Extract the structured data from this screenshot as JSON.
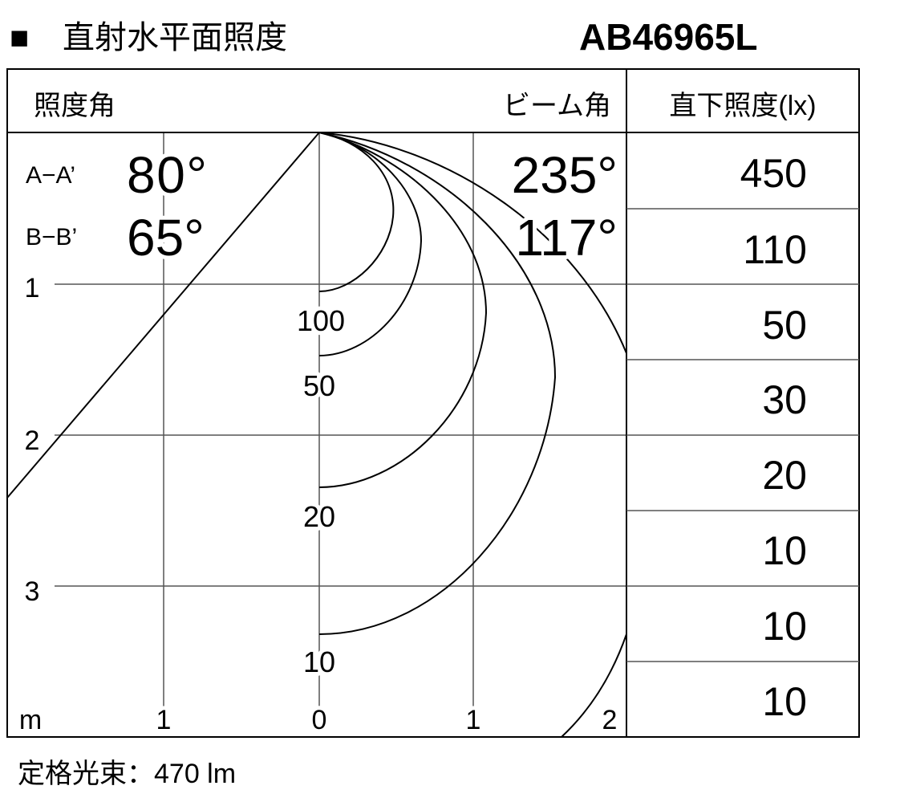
{
  "header": {
    "bullet": "■",
    "title": "直射水平面照度",
    "model": "AB46965L"
  },
  "table_header": {
    "illum_angle": "照度角",
    "beam_angle": "ビーム角",
    "direct_illuminance": "直下照度(lx)"
  },
  "angles": [
    {
      "label": "A−A’",
      "illum_angle": "80°",
      "beam_angle": "235°"
    },
    {
      "label": "B−B’",
      "illum_angle": "65°",
      "beam_angle": "117°"
    }
  ],
  "depth_labels": [
    "1",
    "2",
    "3"
  ],
  "width_labels": [
    "m",
    "1",
    "0",
    "1",
    "2"
  ],
  "contour_labels": [
    "100",
    "50",
    "20",
    "10"
  ],
  "direct_illuminance_values": [
    "450",
    "110",
    "50",
    "30",
    "20",
    "10",
    "10",
    "10"
  ],
  "footer": {
    "rated_flux": "定格光束：470 lm"
  }
}
